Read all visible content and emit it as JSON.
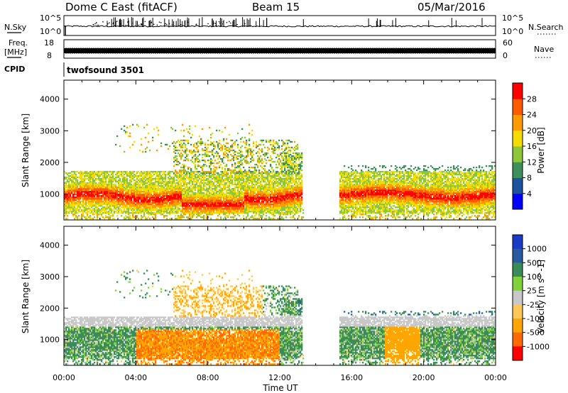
{
  "header": {
    "title": "Dome C East (fitACF)",
    "beam": "Beam 15",
    "date": "05/Mar/2016"
  },
  "top_panels": {
    "nsky_label": "N.Sky",
    "nsky_tick_top": "10^5",
    "nsky_tick_bottom": "10^0",
    "nsearch_label": "N.Search",
    "nsearch_tick_top": "10^5",
    "nsearch_tick_bottom": "10^0",
    "freq_label_1": "Freq.",
    "freq_label_2": "[MHz]",
    "freq_tick_top": "18",
    "freq_tick_bottom": "8",
    "nave_label": "Nave",
    "nave_tick_top": "60",
    "nave_tick_bottom": "0",
    "cpid_label": "CPID",
    "cpid_value": "twofsound 3501"
  },
  "colors": {
    "power": [
      "#0000ff",
      "#1d52a0",
      "#3f8f5a",
      "#8cc63a",
      "#f5dc00",
      "#ff9a00",
      "#ff5a00",
      "#ff0000"
    ],
    "velocity": [
      "#ff0000",
      "#ff6a00",
      "#ffa500",
      "#ffc75a",
      "#c8c8c8",
      "#7fd23a",
      "#3a8a5a",
      "#2a5aa0",
      "#1a3ac8"
    ]
  },
  "chart_data": [
    {
      "type": "heatmap",
      "title": "Power",
      "ylabel": "Slant Range [km]",
      "xlabel": "",
      "ylim": [
        180,
        4600
      ],
      "xlim": [
        0,
        24
      ],
      "yticks": [
        "1000",
        "2000",
        "3000",
        "4000"
      ],
      "colorbar": {
        "label": "Power [dB]",
        "ticks": [
          "4",
          "8",
          "12",
          "16",
          "20",
          "24",
          "28"
        ],
        "range": [
          0,
          32
        ]
      }
    },
    {
      "type": "heatmap",
      "title": "Velocity",
      "ylabel": "Slant Range [km]",
      "xlabel": "Time UT",
      "ylim": [
        180,
        4600
      ],
      "xlim": [
        0,
        24
      ],
      "yticks": [
        "1000",
        "2000",
        "3000",
        "4000"
      ],
      "xticks": [
        "00:00",
        "04:00",
        "08:00",
        "12:00",
        "16:00",
        "20:00",
        "00:00"
      ],
      "colorbar": {
        "label": "Velocity [m s^-1]",
        "ticks": [
          "1000",
          "500",
          "100",
          "25",
          "-25",
          "-100",
          "-500",
          "-1000"
        ]
      }
    }
  ]
}
